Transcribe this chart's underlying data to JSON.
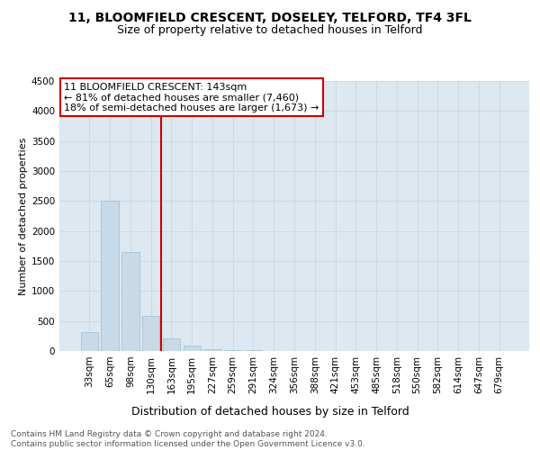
{
  "title": "11, BLOOMFIELD CRESCENT, DOSELEY, TELFORD, TF4 3FL",
  "subtitle": "Size of property relative to detached houses in Telford",
  "xlabel": "Distribution of detached houses by size in Telford",
  "ylabel": "Number of detached properties",
  "categories": [
    "33sqm",
    "65sqm",
    "98sqm",
    "130sqm",
    "163sqm",
    "195sqm",
    "227sqm",
    "259sqm",
    "291sqm",
    "324sqm",
    "356sqm",
    "388sqm",
    "421sqm",
    "453sqm",
    "485sqm",
    "518sqm",
    "550sqm",
    "582sqm",
    "614sqm",
    "647sqm",
    "679sqm"
  ],
  "values": [
    320,
    2500,
    1650,
    590,
    215,
    90,
    35,
    15,
    8,
    4,
    3,
    2,
    2,
    1,
    1,
    1,
    0,
    0,
    0,
    0,
    0
  ],
  "bar_color": "#c8d9e8",
  "bar_edge_color": "#a0bcd0",
  "property_line_x": 3.5,
  "annotation_text": "11 BLOOMFIELD CRESCENT: 143sqm\n← 81% of detached houses are smaller (7,460)\n18% of semi-detached houses are larger (1,673) →",
  "annotation_box_color": "#ffffff",
  "annotation_box_edge": "#cc0000",
  "property_line_color": "#cc0000",
  "ylim": [
    0,
    4500
  ],
  "yticks": [
    0,
    500,
    1000,
    1500,
    2000,
    2500,
    3000,
    3500,
    4000,
    4500
  ],
  "grid_color": "#d0d8e0",
  "background_color": "#dde8f0",
  "footer_text": "Contains HM Land Registry data © Crown copyright and database right 2024.\nContains public sector information licensed under the Open Government Licence v3.0.",
  "title_fontsize": 10,
  "subtitle_fontsize": 9,
  "xlabel_fontsize": 9,
  "ylabel_fontsize": 8,
  "tick_fontsize": 7.5,
  "annotation_fontsize": 8,
  "footer_fontsize": 6.5
}
